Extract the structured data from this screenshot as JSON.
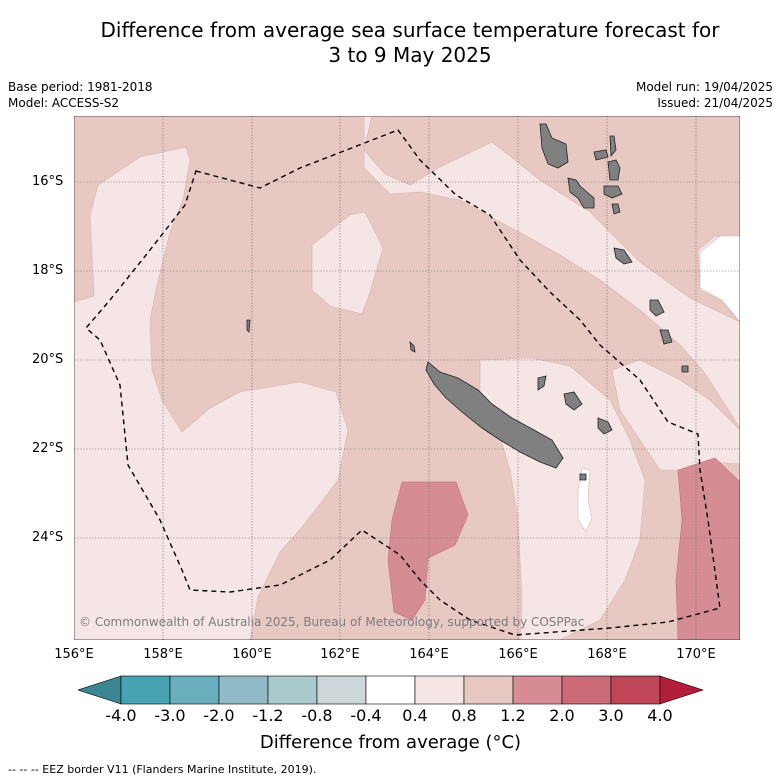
{
  "title": {
    "line1": "Difference from average sea surface temperature forecast for",
    "line2": "3 to 9 May 2025"
  },
  "meta_left": {
    "base_period": "Base period: 1981-2018",
    "model": "Model: ACCESS-S2"
  },
  "meta_right": {
    "model_run": "Model run: 19/04/2025",
    "issued": "Issued: 21/04/2025"
  },
  "map": {
    "lat_ticks": [
      "16°S",
      "18°S",
      "20°S",
      "22°S",
      "24°S"
    ],
    "lon_ticks": [
      "156°E",
      "158°E",
      "160°E",
      "162°E",
      "164°E",
      "166°E",
      "168°E",
      "170°E"
    ],
    "copyright": "© Commonwealth of Australia 2025, Bureau of Meteorology, supported by COSPPac",
    "land_color": "#808080",
    "eez_line_style": "dashed black"
  },
  "colorbar": {
    "labels": [
      "-4.0",
      "-3.0",
      "-2.0",
      "-1.2",
      "-0.8",
      "-0.4",
      "0.4",
      "0.8",
      "1.2",
      "2.0",
      "3.0",
      "4.0"
    ],
    "colors": [
      "#47a3b2",
      "#6aaebe",
      "#8fbac6",
      "#a9c9cc",
      "#cdd6d8",
      "#ffffff",
      "#f5e6e5",
      "#e8c8c3",
      "#d68c94",
      "#cc6a78",
      "#c04556"
    ],
    "under_color": "#3c8592",
    "over_color": "#b21f3a",
    "title": "Difference from average (°C)"
  },
  "footnote": "--  --  -- EEZ border V11 (Flanders Marine Institute, 2019)."
}
